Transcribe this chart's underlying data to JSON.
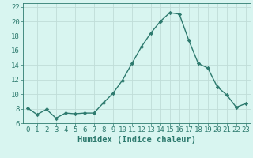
{
  "x": [
    0,
    1,
    2,
    3,
    4,
    5,
    6,
    7,
    8,
    9,
    10,
    11,
    12,
    13,
    14,
    15,
    16,
    17,
    18,
    19,
    20,
    21,
    22,
    23
  ],
  "y": [
    8.1,
    7.2,
    7.9,
    6.7,
    7.4,
    7.3,
    7.4,
    7.4,
    8.8,
    10.1,
    11.9,
    14.2,
    16.5,
    18.4,
    20.0,
    21.2,
    21.0,
    17.4,
    14.2,
    13.6,
    11.0,
    9.9,
    8.2,
    8.7
  ],
  "xlabel": "Humidex (Indice chaleur)",
  "xlim": [
    -0.5,
    23.5
  ],
  "ylim": [
    6,
    22.5
  ],
  "yticks": [
    6,
    8,
    10,
    12,
    14,
    16,
    18,
    20,
    22
  ],
  "xticks": [
    0,
    1,
    2,
    3,
    4,
    5,
    6,
    7,
    8,
    9,
    10,
    11,
    12,
    13,
    14,
    15,
    16,
    17,
    18,
    19,
    20,
    21,
    22,
    23
  ],
  "line_color": "#2d7a6e",
  "marker": "D",
  "marker_size": 2.2,
  "bg_color": "#d8f5f0",
  "grid_color": "#c0ddd8",
  "xlabel_fontsize": 7.5,
  "tick_fontsize": 6.5,
  "line_width": 1.0
}
